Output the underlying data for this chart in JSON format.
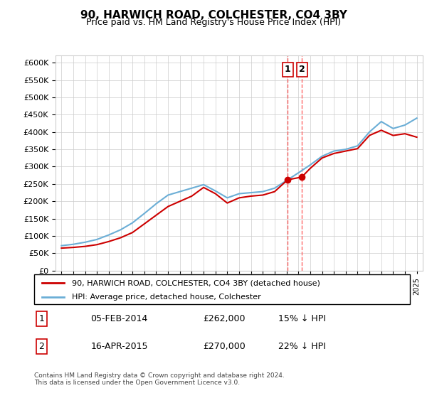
{
  "title": "90, HARWICH ROAD, COLCHESTER, CO4 3BY",
  "subtitle": "Price paid vs. HM Land Registry's House Price Index (HPI)",
  "footer": "Contains HM Land Registry data © Crown copyright and database right 2024.\nThis data is licensed under the Open Government Licence v3.0.",
  "legend_line1": "90, HARWICH ROAD, COLCHESTER, CO4 3BY (detached house)",
  "legend_line2": "HPI: Average price, detached house, Colchester",
  "transaction1_label": "1",
  "transaction1_date": "05-FEB-2014",
  "transaction1_price": "£262,000",
  "transaction1_hpi": "15% ↓ HPI",
  "transaction2_label": "2",
  "transaction2_date": "16-APR-2015",
  "transaction2_price": "£270,000",
  "transaction2_hpi": "22% ↓ HPI",
  "vline1_x": 2014.09,
  "vline2_x": 2015.29,
  "marker1_x": 2014.09,
  "marker1_y": 262000,
  "marker2_x": 2015.29,
  "marker2_y": 270000,
  "hpi_color": "#6baed6",
  "price_color": "#cc0000",
  "vline_color": "#ff6666",
  "background_color": "#ffffff",
  "grid_color": "#cccccc",
  "ylim": [
    0,
    620000
  ],
  "xlim": [
    1994.5,
    2025.5
  ],
  "ytick_step": 50000,
  "hpi_years": [
    1995,
    1996,
    1997,
    1998,
    1999,
    2000,
    2001,
    2002,
    2003,
    2004,
    2005,
    2006,
    2007,
    2008,
    2009,
    2010,
    2011,
    2012,
    2013,
    2014,
    2015,
    2016,
    2017,
    2018,
    2019,
    2020,
    2021,
    2022,
    2023,
    2024,
    2025
  ],
  "hpi_values": [
    72000,
    76000,
    82000,
    90000,
    103000,
    118000,
    138000,
    165000,
    193000,
    218000,
    228000,
    238000,
    248000,
    230000,
    210000,
    222000,
    225000,
    228000,
    238000,
    260000,
    282000,
    305000,
    330000,
    345000,
    350000,
    360000,
    400000,
    430000,
    410000,
    420000,
    440000
  ],
  "price_years": [
    1995,
    1996,
    1997,
    1998,
    1999,
    2000,
    2001,
    2002,
    2003,
    2004,
    2005,
    2006,
    2007,
    2008,
    2009,
    2010,
    2011,
    2012,
    2013,
    2014.09,
    2015.29,
    2016,
    2017,
    2018,
    2019,
    2020,
    2021,
    2022,
    2023,
    2024,
    2025
  ],
  "price_values": [
    65000,
    67000,
    70000,
    75000,
    84000,
    95000,
    110000,
    135000,
    160000,
    185000,
    200000,
    215000,
    240000,
    222000,
    195000,
    210000,
    215000,
    218000,
    228000,
    262000,
    270000,
    295000,
    325000,
    338000,
    345000,
    352000,
    390000,
    405000,
    390000,
    395000,
    385000
  ]
}
